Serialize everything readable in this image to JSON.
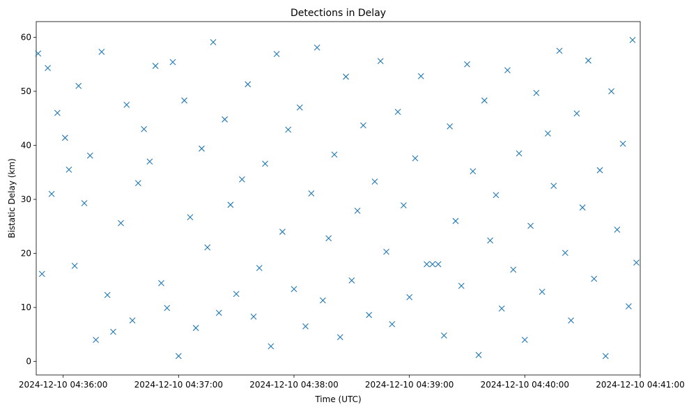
{
  "chart_data": {
    "type": "scatter",
    "title": "Detections in Delay",
    "xlabel": "Time (UTC)",
    "ylabel": "Bistatic Delay (km)",
    "x_ticks": [
      "2024-12-10 04:36:00",
      "2024-12-10 04:37:00",
      "2024-12-10 04:38:00",
      "2024-12-10 04:39:00",
      "2024-12-10 04:40:00",
      "2024-12-10 04:41:00"
    ],
    "y_ticks": [
      0,
      10,
      20,
      30,
      40,
      50,
      60
    ],
    "xlim": [
      "2024-12-10 04:35:46",
      "2024-12-10 04:41:00"
    ],
    "ylim": [
      -2.5,
      62.9
    ],
    "marker": "x",
    "marker_color": "#1f77b4",
    "grid": false,
    "series": [
      {
        "x": [
          "2024-12-10 04:35:47",
          "2024-12-10 04:35:49",
          "2024-12-10 04:35:52",
          "2024-12-10 04:35:54",
          "2024-12-10 04:35:57",
          "2024-12-10 04:36:01",
          "2024-12-10 04:36:03",
          "2024-12-10 04:36:06",
          "2024-12-10 04:36:08",
          "2024-12-10 04:36:11",
          "2024-12-10 04:36:14",
          "2024-12-10 04:36:17",
          "2024-12-10 04:36:20",
          "2024-12-10 04:36:23",
          "2024-12-10 04:36:26",
          "2024-12-10 04:36:30",
          "2024-12-10 04:36:33",
          "2024-12-10 04:36:36",
          "2024-12-10 04:36:39",
          "2024-12-10 04:36:42",
          "2024-12-10 04:36:45",
          "2024-12-10 04:36:48",
          "2024-12-10 04:36:51",
          "2024-12-10 04:36:54",
          "2024-12-10 04:36:57",
          "2024-12-10 04:37:00",
          "2024-12-10 04:37:03",
          "2024-12-10 04:37:06",
          "2024-12-10 04:37:09",
          "2024-12-10 04:37:12",
          "2024-12-10 04:37:15",
          "2024-12-10 04:37:18",
          "2024-12-10 04:37:21",
          "2024-12-10 04:37:24",
          "2024-12-10 04:37:27",
          "2024-12-10 04:37:30",
          "2024-12-10 04:37:33",
          "2024-12-10 04:37:36",
          "2024-12-10 04:37:39",
          "2024-12-10 04:37:42",
          "2024-12-10 04:37:45",
          "2024-12-10 04:37:48",
          "2024-12-10 04:37:51",
          "2024-12-10 04:37:54",
          "2024-12-10 04:37:57",
          "2024-12-10 04:38:00",
          "2024-12-10 04:38:03",
          "2024-12-10 04:38:06",
          "2024-12-10 04:38:09",
          "2024-12-10 04:38:12",
          "2024-12-10 04:38:15",
          "2024-12-10 04:38:18",
          "2024-12-10 04:38:21",
          "2024-12-10 04:38:24",
          "2024-12-10 04:38:27",
          "2024-12-10 04:38:30",
          "2024-12-10 04:38:33",
          "2024-12-10 04:38:36",
          "2024-12-10 04:38:39",
          "2024-12-10 04:38:42",
          "2024-12-10 04:38:45",
          "2024-12-10 04:38:48",
          "2024-12-10 04:38:51",
          "2024-12-10 04:38:54",
          "2024-12-10 04:38:57",
          "2024-12-10 04:39:00",
          "2024-12-10 04:39:03",
          "2024-12-10 04:39:06",
          "2024-12-10 04:39:09",
          "2024-12-10 04:39:12",
          "2024-12-10 04:39:15",
          "2024-12-10 04:39:18",
          "2024-12-10 04:39:21",
          "2024-12-10 04:39:24",
          "2024-12-10 04:39:27",
          "2024-12-10 04:39:30",
          "2024-12-10 04:39:33",
          "2024-12-10 04:39:36",
          "2024-12-10 04:39:39",
          "2024-12-10 04:39:42",
          "2024-12-10 04:39:45",
          "2024-12-10 04:39:48",
          "2024-12-10 04:39:51",
          "2024-12-10 04:39:54",
          "2024-12-10 04:39:57",
          "2024-12-10 04:40:00",
          "2024-12-10 04:40:03",
          "2024-12-10 04:40:06",
          "2024-12-10 04:40:09",
          "2024-12-10 04:40:12",
          "2024-12-10 04:40:15",
          "2024-12-10 04:40:18",
          "2024-12-10 04:40:21",
          "2024-12-10 04:40:24",
          "2024-12-10 04:40:27",
          "2024-12-10 04:40:30",
          "2024-12-10 04:40:33",
          "2024-12-10 04:40:36",
          "2024-12-10 04:40:39",
          "2024-12-10 04:40:42",
          "2024-12-10 04:40:45",
          "2024-12-10 04:40:48",
          "2024-12-10 04:40:51",
          "2024-12-10 04:40:54",
          "2024-12-10 04:40:56",
          "2024-12-10 04:40:58"
        ],
        "y": [
          57.0,
          16.2,
          54.3,
          31.0,
          46.0,
          41.4,
          35.5,
          17.7,
          51.0,
          29.3,
          38.1,
          4.0,
          57.3,
          12.3,
          5.5,
          25.6,
          47.5,
          7.6,
          33.0,
          43.0,
          37.0,
          54.7,
          14.5,
          9.9,
          55.4,
          1.0,
          48.3,
          26.7,
          6.2,
          39.4,
          21.1,
          59.1,
          9.0,
          44.8,
          29.0,
          12.5,
          33.7,
          51.3,
          8.3,
          17.3,
          36.6,
          2.8,
          56.9,
          24.0,
          42.9,
          13.4,
          47.0,
          6.5,
          31.1,
          58.1,
          11.3,
          22.8,
          38.3,
          4.5,
          52.7,
          15.0,
          27.9,
          43.7,
          8.6,
          33.3,
          55.6,
          20.3,
          6.9,
          46.2,
          28.9,
          11.9,
          37.6,
          52.8,
          18.0,
          18.0,
          18.0,
          4.8,
          43.5,
          26.0,
          14.0,
          55.0,
          35.2,
          1.2,
          48.3,
          22.4,
          30.8,
          9.8,
          53.9,
          17.0,
          38.5,
          4.0,
          25.1,
          49.7,
          12.9,
          42.2,
          32.5,
          57.5,
          20.1,
          7.6,
          45.9,
          28.5,
          55.7,
          15.3,
          35.4,
          1.0,
          50.0,
          24.4,
          40.3,
          10.2,
          59.5,
          18.3
        ]
      }
    ]
  }
}
